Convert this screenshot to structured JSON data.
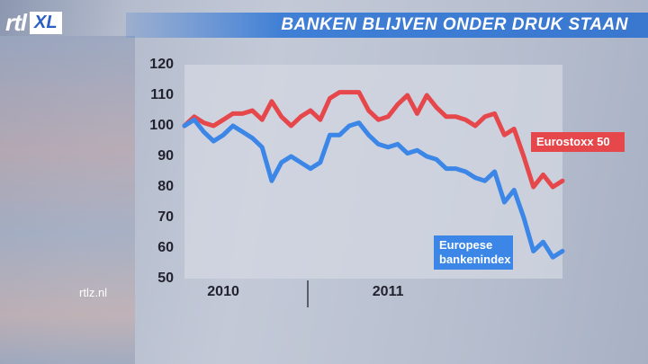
{
  "logo": {
    "brand": "rtl",
    "badge": "XL"
  },
  "watermark": "rtlz.nl",
  "chart_data": {
    "type": "line",
    "title": "BANKEN BLIJVEN ONDER DRUK STAAN",
    "categories": [
      null,
      null,
      null,
      null,
      "2010",
      null,
      null,
      null,
      null,
      null,
      null,
      null,
      null,
      null,
      null,
      null,
      null,
      null,
      null,
      null,
      null,
      "2011",
      null,
      null,
      null,
      null,
      null,
      null,
      null,
      null,
      null,
      null,
      null,
      null,
      null,
      null,
      null,
      null,
      null,
      null
    ],
    "series": [
      {
        "name": "Eurostoxx 50",
        "color": "#e5474b",
        "values": [
          100,
          103,
          101,
          100,
          102,
          104,
          104,
          105,
          102,
          108,
          103,
          100,
          103,
          105,
          102,
          109,
          111,
          111,
          111,
          105,
          102,
          103,
          107,
          110,
          104,
          110,
          106,
          103,
          103,
          102,
          100,
          103,
          104,
          97,
          99,
          90,
          80,
          84,
          80,
          82
        ]
      },
      {
        "name": "Europese bankenindex",
        "color": "#3b86e6",
        "values": [
          100,
          102,
          98,
          95,
          97,
          100,
          98,
          96,
          93,
          82,
          88,
          90,
          88,
          86,
          88,
          97,
          97,
          100,
          101,
          97,
          94,
          93,
          94,
          91,
          92,
          90,
          89,
          86,
          86,
          85,
          83,
          82,
          85,
          75,
          79,
          70,
          59,
          62,
          57,
          59
        ]
      }
    ],
    "ylim": [
      50,
      120
    ],
    "yticks": [
      50,
      60,
      70,
      80,
      90,
      100,
      110,
      120
    ]
  }
}
